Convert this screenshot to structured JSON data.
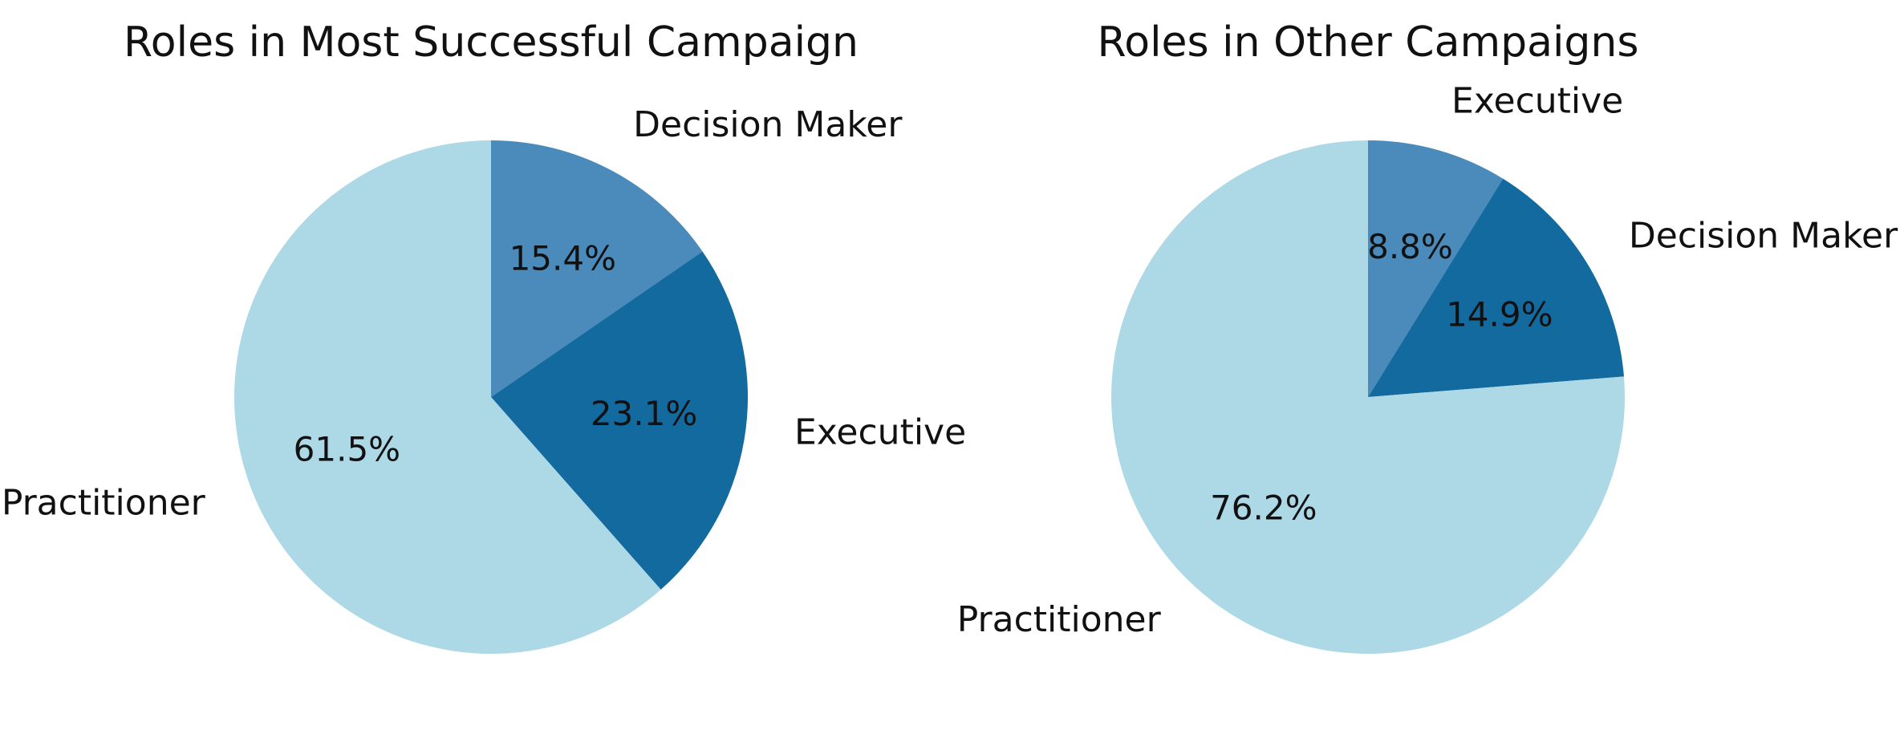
{
  "chart_data": [
    {
      "type": "pie",
      "title": "Roles in Most Successful Campaign",
      "start_angle_deg": 90,
      "direction": "clockwise",
      "slices": [
        {
          "label": "Decision Maker",
          "value": 15.4,
          "pct_text": "15.4%",
          "color": "#4a8bbb"
        },
        {
          "label": "Executive",
          "value": 23.1,
          "pct_text": "23.1%",
          "color": "#136a9e"
        },
        {
          "label": "Practitioner",
          "value": 61.5,
          "pct_text": "61.5%",
          "color": "#add8e6"
        }
      ]
    },
    {
      "type": "pie",
      "title": "Roles in Other Campaigns",
      "start_angle_deg": 90,
      "direction": "clockwise",
      "slices": [
        {
          "label": "Executive",
          "value": 8.8,
          "pct_text": "8.8%",
          "color": "#4a8bbb"
        },
        {
          "label": "Decision Maker",
          "value": 14.9,
          "pct_text": "14.9%",
          "color": "#136a9e"
        },
        {
          "label": "Practitioner",
          "value": 76.2,
          "pct_text": "76.2%",
          "color": "#add8e6"
        }
      ]
    }
  ]
}
